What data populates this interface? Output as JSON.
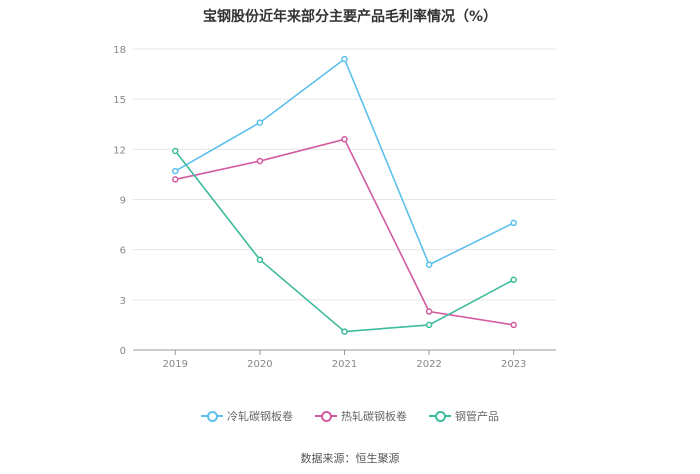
{
  "chart_data": {
    "type": "line",
    "title": "宝钢股份近年来部分主要产品毛利率情况（%）",
    "categories": [
      "2019",
      "2020",
      "2021",
      "2022",
      "2023"
    ],
    "series": [
      {
        "name": "冷轧碳钢板卷",
        "color": "#5bc0eb",
        "values": [
          10.7,
          13.6,
          17.4,
          5.1,
          7.6
        ]
      },
      {
        "name": "热轧碳钢板卷",
        "color": "#d35ba0",
        "values": [
          10.2,
          11.3,
          12.6,
          2.3,
          1.5
        ]
      },
      {
        "name": "钢管产品",
        "color": "#3dbb9c",
        "values": [
          11.9,
          5.4,
          1.1,
          1.5,
          4.2
        ]
      }
    ],
    "ylim": [
      0,
      18
    ],
    "yticks": [
      0,
      3,
      6,
      9,
      12,
      15,
      18
    ],
    "grid": true,
    "legend_position": "bottom",
    "source": "数据来源：恒生聚源"
  }
}
